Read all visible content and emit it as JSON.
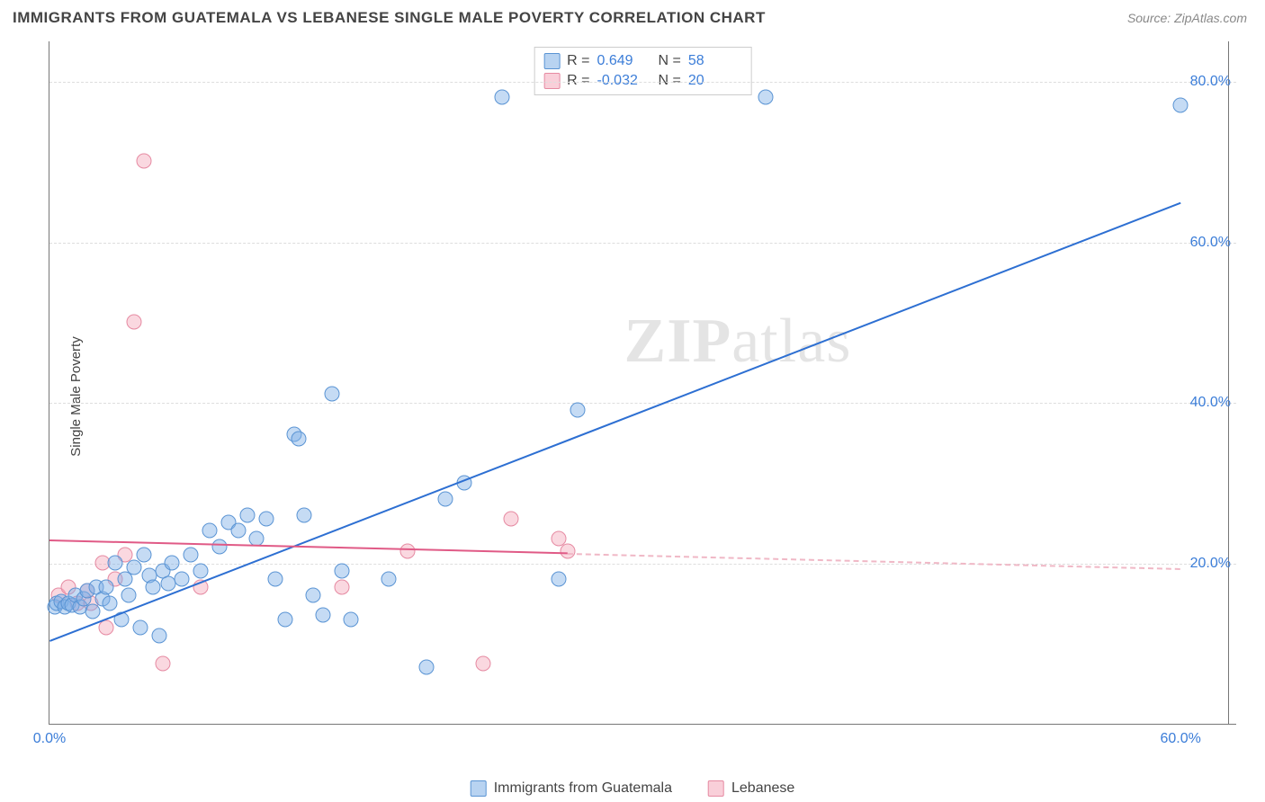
{
  "header": {
    "title": "IMMIGRANTS FROM GUATEMALA VS LEBANESE SINGLE MALE POVERTY CORRELATION CHART",
    "source": "Source: ZipAtlas.com"
  },
  "ylabel": "Single Male Poverty",
  "watermark": {
    "zip": "ZIP",
    "atlas": "atlas"
  },
  "chart": {
    "type": "scatter",
    "xlim": [
      0,
      63
    ],
    "ylim": [
      0,
      85
    ],
    "xtick_labels": [
      {
        "v": 0,
        "label": "0.0%"
      },
      {
        "v": 60,
        "label": "60.0%"
      }
    ],
    "ytick_labels": [
      {
        "v": 20,
        "label": "20.0%"
      },
      {
        "v": 40,
        "label": "40.0%"
      },
      {
        "v": 60,
        "label": "60.0%"
      },
      {
        "v": 80,
        "label": "80.0%"
      }
    ],
    "grid_color": "#dddddd",
    "background_color": "#ffffff",
    "marker_size": 17,
    "series": {
      "blue": {
        "label": "Immigrants from Guatemala",
        "color_fill": "rgba(126,175,230,0.45)",
        "color_stroke": "#5a94d4",
        "points": [
          [
            0.3,
            14.5
          ],
          [
            0.4,
            15
          ],
          [
            0.6,
            15.2
          ],
          [
            0.8,
            14.5
          ],
          [
            1.0,
            15.0
          ],
          [
            1.2,
            14.8
          ],
          [
            1.4,
            16
          ],
          [
            1.6,
            14.5
          ],
          [
            1.8,
            15.5
          ],
          [
            2.0,
            16.5
          ],
          [
            2.3,
            14
          ],
          [
            2.5,
            17
          ],
          [
            2.8,
            15.5
          ],
          [
            3.0,
            17
          ],
          [
            3.2,
            15
          ],
          [
            3.5,
            20
          ],
          [
            3.8,
            13
          ],
          [
            4.0,
            18
          ],
          [
            4.2,
            16
          ],
          [
            4.5,
            19.5
          ],
          [
            4.8,
            12
          ],
          [
            5.0,
            21
          ],
          [
            5.3,
            18.5
          ],
          [
            5.5,
            17
          ],
          [
            5.8,
            11
          ],
          [
            6.0,
            19
          ],
          [
            6.3,
            17.5
          ],
          [
            6.5,
            20
          ],
          [
            7.0,
            18
          ],
          [
            7.5,
            21
          ],
          [
            8.0,
            19
          ],
          [
            8.5,
            24
          ],
          [
            9.0,
            22
          ],
          [
            9.5,
            25
          ],
          [
            10.0,
            24
          ],
          [
            10.5,
            26
          ],
          [
            11.0,
            23
          ],
          [
            11.5,
            25.5
          ],
          [
            12.0,
            18
          ],
          [
            12.5,
            13
          ],
          [
            13.0,
            36
          ],
          [
            13.2,
            35.5
          ],
          [
            13.5,
            26
          ],
          [
            14.0,
            16
          ],
          [
            14.5,
            13.5
          ],
          [
            15.0,
            41
          ],
          [
            15.5,
            19
          ],
          [
            16.0,
            13
          ],
          [
            18.0,
            18
          ],
          [
            20.0,
            7
          ],
          [
            21.0,
            28
          ],
          [
            22.0,
            30
          ],
          [
            24.0,
            78
          ],
          [
            27.0,
            18
          ],
          [
            28.0,
            39
          ],
          [
            38.0,
            78
          ],
          [
            60.0,
            77
          ]
        ],
        "trend": {
          "x0": 0,
          "y0": 10.5,
          "x1": 60,
          "y1": 65,
          "solid_until_x": 60
        }
      },
      "pink": {
        "label": "Lebanese",
        "color_fill": "rgba(244,168,186,0.45)",
        "color_stroke": "#e68aa2",
        "points": [
          [
            0.5,
            16
          ],
          [
            1.0,
            17
          ],
          [
            1.5,
            15
          ],
          [
            2.0,
            16.5
          ],
          [
            2.2,
            15
          ],
          [
            2.8,
            20
          ],
          [
            3.0,
            12
          ],
          [
            3.5,
            18
          ],
          [
            4.0,
            21
          ],
          [
            4.5,
            50
          ],
          [
            5.0,
            70
          ],
          [
            6.0,
            7.5
          ],
          [
            8.0,
            17
          ],
          [
            15.5,
            17
          ],
          [
            19.0,
            21.5
          ],
          [
            23.0,
            7.5
          ],
          [
            24.5,
            25.5
          ],
          [
            27.0,
            23
          ],
          [
            27.5,
            21.5
          ]
        ],
        "trend": {
          "x0": 0,
          "y0": 23,
          "x1": 60,
          "y1": 19.5,
          "solid_until_x": 27.5
        }
      }
    }
  },
  "stat_legend": {
    "rows": [
      {
        "swatch": "blue",
        "r_label": "R =",
        "r_value": "0.649",
        "n_label": "N =",
        "n_value": "58"
      },
      {
        "swatch": "pink",
        "r_label": "R =",
        "r_value": "-0.032",
        "n_label": "N =",
        "n_value": "20"
      }
    ]
  },
  "bottom_legend": {
    "items": [
      {
        "swatch": "blue",
        "label": "Immigrants from Guatemala"
      },
      {
        "swatch": "pink",
        "label": "Lebanese"
      }
    ]
  }
}
